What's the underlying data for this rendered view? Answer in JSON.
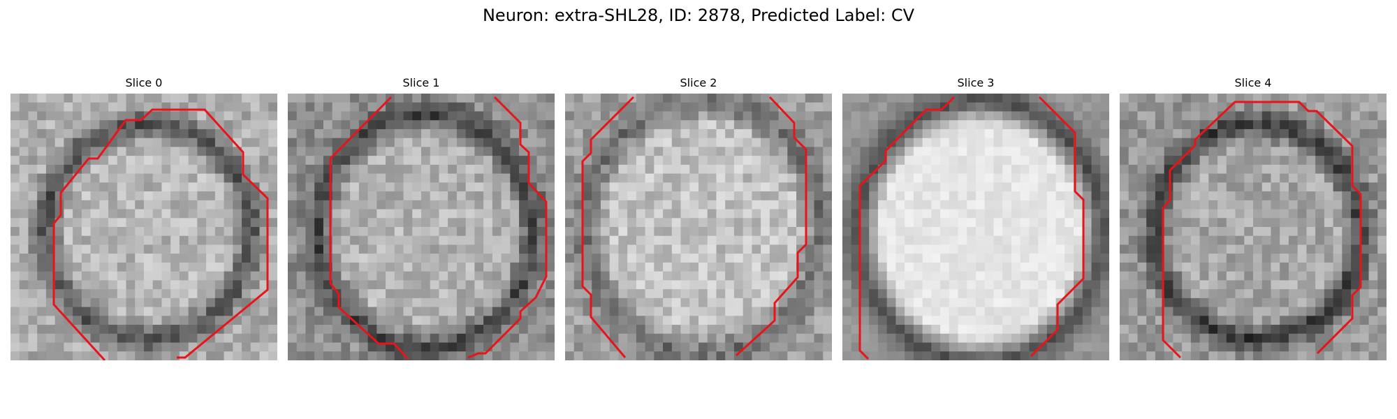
{
  "figure": {
    "title": "Neuron: extra-SHL28, ID: 2878, Predicted Label: CV"
  },
  "slices": [
    {
      "title": "Slice 0"
    },
    {
      "title": "Slice 1"
    },
    {
      "title": "Slice 2"
    },
    {
      "title": "Slice 3"
    },
    {
      "title": "Slice 4"
    }
  ],
  "colors": {
    "background": "#ffffff",
    "text": "#000000",
    "contour": "#e8141a"
  }
}
